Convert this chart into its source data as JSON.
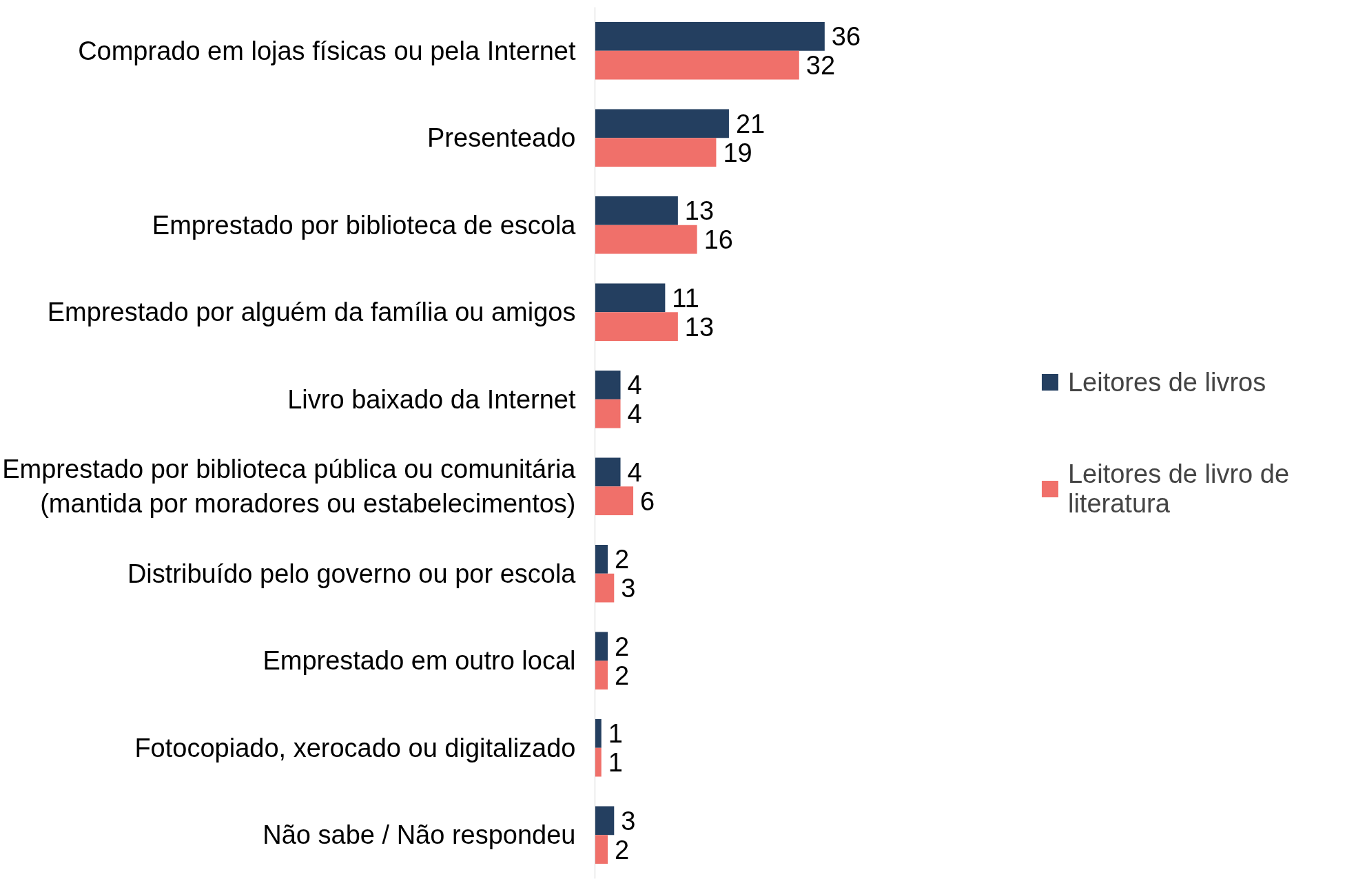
{
  "chart_data": {
    "type": "bar",
    "orientation": "horizontal",
    "tick_labels": "y",
    "data_labels": true,
    "grid": false,
    "legend": "right",
    "categories": [
      "Comprado em lojas físicas ou pela Internet",
      "Presenteado",
      "Emprestado por biblioteca de escola",
      "Emprestado por alguém da família ou amigos",
      "Livro baixado da Internet",
      "Emprestado por biblioteca pública ou comunitária\n(mantida por moradores ou estabelecimentos)",
      "Distribuído pelo governo ou por escola",
      "Emprestado em outro local",
      "Fotocopiado, xerocado ou digitalizado",
      "Não sabe / Não respondeu"
    ],
    "series": [
      {
        "name": "Leitores de livros",
        "color": "#243f60",
        "values": [
          36,
          21,
          13,
          11,
          4,
          4,
          2,
          2,
          1,
          3
        ]
      },
      {
        "name": "Leitores de livro de literatura",
        "color": "#f0706a",
        "values": [
          32,
          19,
          16,
          13,
          4,
          6,
          3,
          2,
          1,
          2
        ]
      }
    ]
  }
}
